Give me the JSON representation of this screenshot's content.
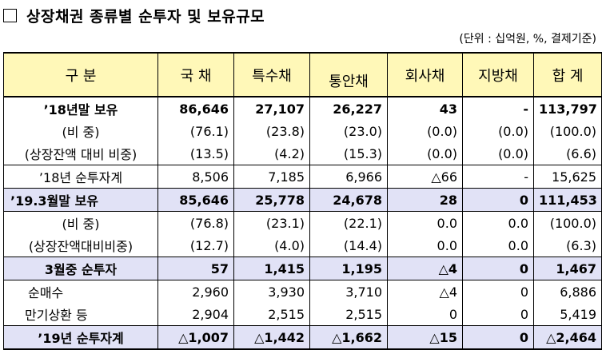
{
  "title": "상장채권 종류별 순투자 및 보유규모",
  "unit_note": "(단위 : 십억원, %, 결제기준)",
  "columns": [
    "구  분",
    "국 채",
    "특수채",
    "통안채",
    "회사채",
    "지방채",
    "합 계"
  ],
  "rows": [
    {
      "label": "’18년말 보유",
      "values": [
        "86,646",
        "27,107",
        "26,227",
        "43",
        "-",
        "113,797"
      ]
    },
    {
      "label": "(비 중)",
      "values": [
        "(76.1)",
        "(23.8)",
        "(23.0)",
        "(0.0)",
        "(0.0)",
        "(100.0)"
      ]
    },
    {
      "label": "(상장잔액 대비 비중)",
      "values": [
        "(13.5)",
        "(4.2)",
        "(15.3)",
        "(0.0)",
        "(0.0)",
        "(6.6)"
      ]
    },
    {
      "label": "’18년 순투자계",
      "values": [
        "8,506",
        "7,185",
        "6,966",
        "△66",
        "-",
        "15,625"
      ]
    },
    {
      "label": "’19.3월말 보유",
      "values": [
        "85,646",
        "25,778",
        "24,678",
        "28",
        "0",
        "111,453"
      ]
    },
    {
      "label": "(비 중)",
      "values": [
        "(76.8)",
        "(23.1)",
        "(22.1)",
        "0.0",
        "0.0",
        "(100.0)"
      ]
    },
    {
      "label": "(상장잔액대비비중)",
      "values": [
        "(12.7)",
        "(4.0)",
        "(14.4)",
        "0.0",
        "0.0",
        "(6.3)"
      ]
    },
    {
      "label": "3월중 순투자",
      "values": [
        "57",
        "1,415",
        "1,195",
        "△4",
        "0",
        "1,467"
      ]
    },
    {
      "label": "순매수",
      "values": [
        "2,960",
        "3,930",
        "3,710",
        "△4",
        "0",
        "6,886"
      ]
    },
    {
      "label": "만기상환 등",
      "values": [
        "2,904",
        "2,515",
        "2,515",
        "0",
        "0",
        "5,419"
      ]
    },
    {
      "label": "’19년 순투자계",
      "values": [
        "△1,007",
        "△1,442",
        "△1,662",
        "△15",
        "0",
        "△2,464"
      ]
    }
  ],
  "colors": {
    "header_bg": "#fff8b8",
    "highlight_bg": "#e1e2f6"
  }
}
